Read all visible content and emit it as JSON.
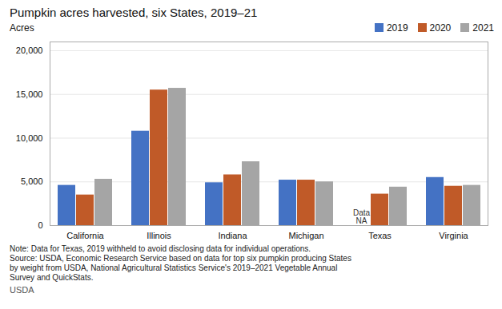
{
  "chart_data": {
    "type": "bar",
    "title": "Pumpkin acres harvested, six States, 2019–21",
    "ylabel": "Acres",
    "categories": [
      "California",
      "Illinois",
      "Indiana",
      "Michigan",
      "Texas",
      "Virginia"
    ],
    "series": [
      {
        "name": "2019",
        "color": "#4472C4",
        "values": [
          4600,
          10800,
          4900,
          5200,
          null,
          5500
        ]
      },
      {
        "name": "2020",
        "color": "#C05A28",
        "values": [
          3500,
          15500,
          5800,
          5200,
          3600,
          4500
        ]
      },
      {
        "name": "2021",
        "color": "#A5A5A5",
        "values": [
          5300,
          15700,
          7300,
          5000,
          4400,
          4600
        ]
      }
    ],
    "ylim": [
      0,
      21000
    ],
    "yticks": [
      0,
      {
        "value": 5000,
        "label": "5,000"
      },
      {
        "value": 10000,
        "label": "10,000"
      },
      {
        "value": 15000,
        "label": "15,000"
      },
      {
        "value": 20000,
        "label": "20,000"
      }
    ],
    "grid": true,
    "legend": "upper right",
    "annotations": [
      {
        "text": "Data\nNA",
        "category": "Texas",
        "series": "2019"
      }
    ],
    "notes": [
      "Note: Data for Texas, 2019 withheld to avoid disclosing data for individual operations.",
      "Source: USDA, Economic Research Service based on data for top six pumpkin producing States",
      "by weight from USDA, National Agricultural Statistics Service's 2019–2021 Vegetable Annual",
      "Survey and QuickStats."
    ],
    "footer": "USDA"
  }
}
